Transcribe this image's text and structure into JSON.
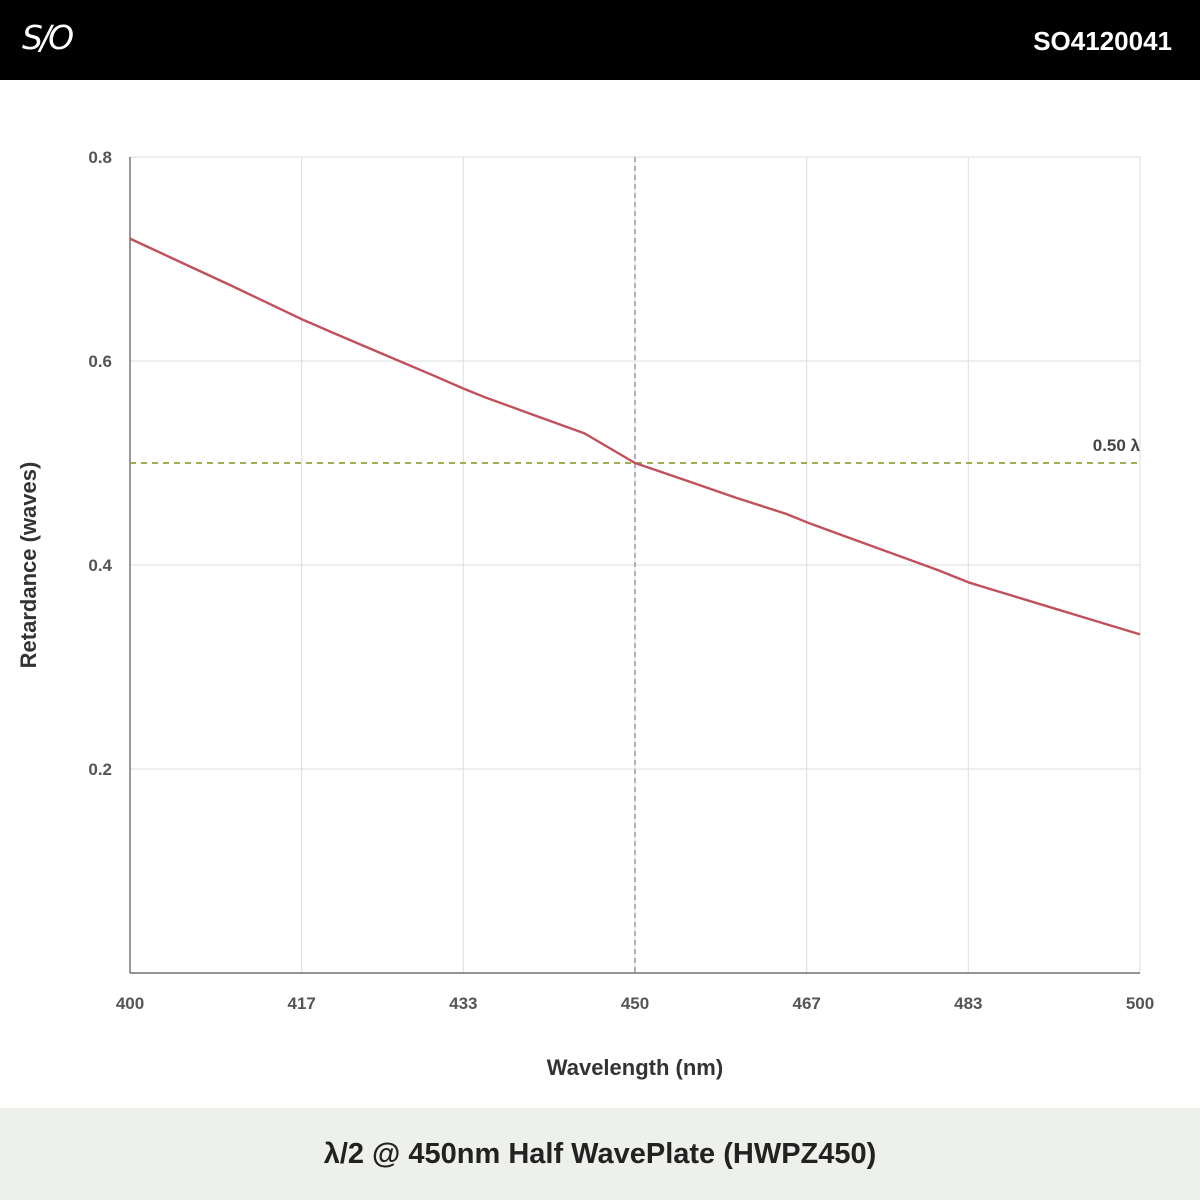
{
  "header": {
    "logo_text": "S/O",
    "part_number": "SO4120041"
  },
  "footer": {
    "title": "λ/2 @ 450nm Half WavePlate (HWPZ450)"
  },
  "chart_data": {
    "type": "line",
    "xlabel": "Wavelength (nm)",
    "ylabel": "Retardance (waves)",
    "xlim": [
      400,
      500
    ],
    "ylim": [
      0,
      0.8
    ],
    "x_ticks": [
      400,
      417,
      433,
      450,
      467,
      483,
      500
    ],
    "y_ticks": [
      0.2,
      0.4,
      0.6,
      0.8
    ],
    "y_tick_labels": [
      "0.2",
      "0.4",
      "0.6",
      "0.8"
    ],
    "grid": true,
    "series": [
      {
        "color": "#c0505a",
        "x": [
          400,
          405,
          410,
          417,
          420,
          425,
          430,
          433,
          435,
          440,
          445,
          450,
          455,
          460,
          465,
          467,
          470,
          475,
          480,
          483,
          485,
          490,
          495,
          500
        ],
        "y": [
          0.72,
          0.697,
          0.674,
          0.641,
          0.628,
          0.607,
          0.586,
          0.573,
          0.565,
          0.547,
          0.529,
          0.5,
          0.483,
          0.466,
          0.45,
          0.442,
          0.431,
          0.413,
          0.395,
          0.383,
          0.377,
          0.362,
          0.347,
          0.332
        ]
      }
    ],
    "reference_lines": [
      {
        "axis": "x",
        "value": 450,
        "color": "#999999",
        "style": "dashed"
      },
      {
        "axis": "y",
        "value": 0.5,
        "color": "#8fa43a",
        "style": "dashed",
        "label": "0.50 λ"
      }
    ]
  }
}
